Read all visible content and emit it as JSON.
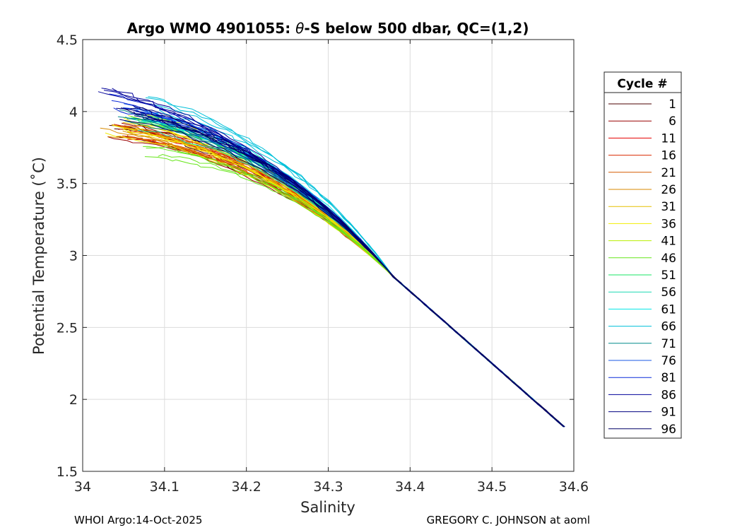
{
  "chart_data": {
    "type": "line",
    "title_prefix": "Argo WMO 4901055: ",
    "title_theta": "θ",
    "title_suffix": "-S below 500 dbar,  QC=(1,2)",
    "xlabel": "Salinity",
    "ylabel": "Potential Temperature (˚C)",
    "xlim": [
      34.0,
      34.6
    ],
    "ylim": [
      1.5,
      4.5
    ],
    "xticks": [
      "34",
      "34.1",
      "34.2",
      "34.3",
      "34.4",
      "34.5",
      "34.6"
    ],
    "yticks": [
      "1.5",
      "2",
      "2.5",
      "3",
      "3.5",
      "4",
      "4.5"
    ],
    "grid": true,
    "legend": {
      "title": "Cycle #",
      "placement": "outside-right",
      "entries": [
        {
          "label": "1",
          "color": "#4d0000"
        },
        {
          "label": "6",
          "color": "#990000"
        },
        {
          "label": "11",
          "color": "#e60000"
        },
        {
          "label": "16",
          "color": "#d92b00"
        },
        {
          "label": "21",
          "color": "#d65a00"
        },
        {
          "label": "26",
          "color": "#d98a00"
        },
        {
          "label": "31",
          "color": "#e6c000"
        },
        {
          "label": "36",
          "color": "#f2ee00"
        },
        {
          "label": "41",
          "color": "#b8ee00"
        },
        {
          "label": "46",
          "color": "#66e61a"
        },
        {
          "label": "51",
          "color": "#1ae666"
        },
        {
          "label": "56",
          "color": "#1ad9b3"
        },
        {
          "label": "61",
          "color": "#00e6e6"
        },
        {
          "label": "66",
          "color": "#00c0d9"
        },
        {
          "label": "71",
          "color": "#008a8a"
        },
        {
          "label": "76",
          "color": "#1a5ae6"
        },
        {
          "label": "81",
          "color": "#0a2ad9"
        },
        {
          "label": "86",
          "color": "#000099"
        },
        {
          "label": "91",
          "color": "#000080"
        },
        {
          "label": "96",
          "color": "#000066"
        }
      ]
    },
    "series_shape": {
      "deep_point": {
        "salinity": 34.588,
        "theta": 1.81
      },
      "mid_point": {
        "salinity": 34.38,
        "theta": 2.85
      },
      "shallow_start": {
        "salinity_range": [
          34.03,
          34.12
        ],
        "theta_range": [
          3.72,
          4.13
        ]
      }
    },
    "series": [
      {
        "cycle": 1,
        "color": "#4d0000",
        "s0": 34.05,
        "t0": 3.86
      },
      {
        "cycle": 6,
        "color": "#990000",
        "s0": 34.04,
        "t0": 3.88
      },
      {
        "cycle": 11,
        "color": "#e60000",
        "s0": 34.06,
        "t0": 3.84
      },
      {
        "cycle": 16,
        "color": "#d92b00",
        "s0": 34.05,
        "t0": 3.86
      },
      {
        "cycle": 21,
        "color": "#d65a00",
        "s0": 34.04,
        "t0": 3.85
      },
      {
        "cycle": 26,
        "color": "#d98a00",
        "s0": 34.03,
        "t0": 3.87
      },
      {
        "cycle": 31,
        "color": "#e6c000",
        "s0": 34.05,
        "t0": 3.89
      },
      {
        "cycle": 36,
        "color": "#f2ee00",
        "s0": 34.04,
        "t0": 3.9
      },
      {
        "cycle": 41,
        "color": "#b8ee00",
        "s0": 34.07,
        "t0": 3.92
      },
      {
        "cycle": 46,
        "color": "#66e61a",
        "s0": 34.08,
        "t0": 3.74
      },
      {
        "cycle": 51,
        "color": "#1ae666",
        "s0": 34.06,
        "t0": 3.95
      },
      {
        "cycle": 56,
        "color": "#1ad9b3",
        "s0": 34.07,
        "t0": 3.93
      },
      {
        "cycle": 61,
        "color": "#00e6e6",
        "s0": 34.08,
        "t0": 3.96
      },
      {
        "cycle": 66,
        "color": "#00c0d9",
        "s0": 34.09,
        "t0": 4.06
      },
      {
        "cycle": 71,
        "color": "#008a8a",
        "s0": 34.05,
        "t0": 3.99
      },
      {
        "cycle": 76,
        "color": "#1a5ae6",
        "s0": 34.06,
        "t0": 4.04
      },
      {
        "cycle": 81,
        "color": "#0a2ad9",
        "s0": 34.04,
        "t0": 4.08
      },
      {
        "cycle": 86,
        "color": "#000099",
        "s0": 34.03,
        "t0": 4.12
      },
      {
        "cycle": 91,
        "color": "#000080",
        "s0": 34.05,
        "t0": 4.02
      },
      {
        "cycle": 96,
        "color": "#000066",
        "s0": 34.06,
        "t0": 3.98
      }
    ]
  },
  "footer": {
    "left": "WHOI Argo:14-Oct-2025",
    "right": "GREGORY C. JOHNSON at aoml"
  }
}
